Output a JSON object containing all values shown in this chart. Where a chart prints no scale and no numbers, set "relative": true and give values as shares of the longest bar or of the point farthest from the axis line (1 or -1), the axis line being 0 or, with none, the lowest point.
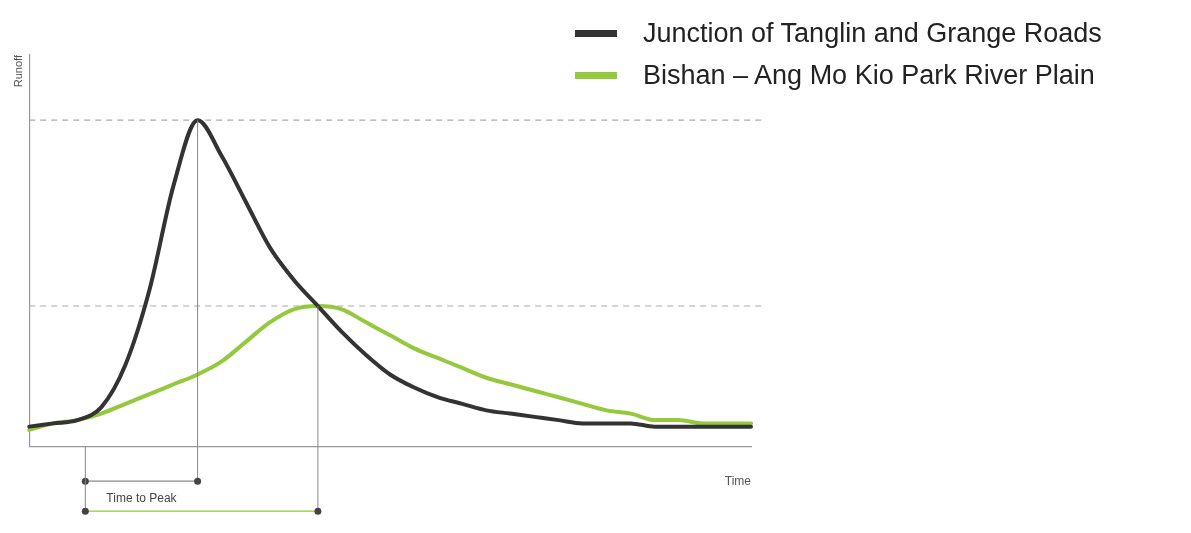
{
  "chart_data": {
    "type": "line",
    "relative": true,
    "xlabel": "Time",
    "ylabel": "Runoff",
    "legend": "top right",
    "grid": false,
    "marker": "none",
    "line_style": "solid",
    "categories": [
      null,
      null,
      null,
      null,
      null,
      null,
      null,
      null,
      null,
      null,
      null,
      null,
      null,
      null,
      null,
      null,
      null,
      null,
      null,
      null,
      null,
      null,
      null,
      null,
      null,
      null,
      null,
      null,
      null,
      null,
      null
    ],
    "series": [
      {
        "name": "Junction of Tanglin and Grange Roads",
        "color": "#333333",
        "values": [
          0.06,
          0.07,
          0.08,
          0.12,
          0.25,
          0.48,
          0.8,
          1,
          0.89,
          0.75,
          0.61,
          0.51,
          0.43,
          0.35,
          0.28,
          0.22,
          0.18,
          0.15,
          0.13,
          0.11,
          0.1,
          0.09,
          0.08,
          0.07,
          0.07,
          0.07,
          0.06,
          0.06,
          0.06,
          0.06,
          0.06
        ]
      },
      {
        "name": "Bishan – Ang Mo Kio Park River Plain",
        "color": "#94c83d",
        "values": [
          0.05,
          0.07,
          0.08,
          0.1,
          0.13,
          0.16,
          0.19,
          0.22,
          0.26,
          0.32,
          0.38,
          0.42,
          0.43,
          0.42,
          0.38,
          0.34,
          0.3,
          0.27,
          0.24,
          0.21,
          0.19,
          0.17,
          0.15,
          0.13,
          0.11,
          0.1,
          0.08,
          0.08,
          0.07,
          0.07,
          0.07
        ]
      }
    ],
    "ref_lines": [
      {
        "axis": "y",
        "value": 1,
        "label": null,
        "color": "#aaaaaa",
        "line_style": "dashed"
      },
      {
        "axis": "y",
        "value": 0.43,
        "label": null,
        "color": "#aaaaaa",
        "line_style": "dashed"
      }
    ],
    "annotations": [
      "Time to Peak"
    ]
  }
}
